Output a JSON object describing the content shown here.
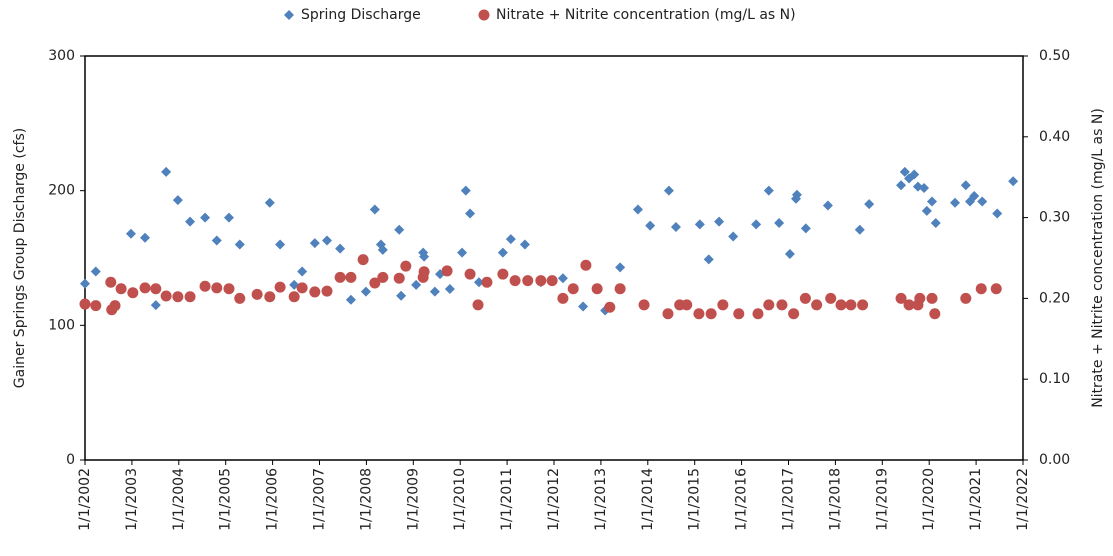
{
  "chart_data": {
    "type": "scatter",
    "y_label": "Gainer Springs Group Discharge (cfs)",
    "y2_label": "Nitrate + Nitrite concentration (mg/L as N)",
    "xlim": [
      2002,
      2022
    ],
    "xticks": [
      {
        "value": 2002,
        "label": "1/1/2002"
      },
      {
        "value": 2003,
        "label": "1/1/2003"
      },
      {
        "value": 2004,
        "label": "1/1/2004"
      },
      {
        "value": 2005,
        "label": "1/1/2005"
      },
      {
        "value": 2006,
        "label": "1/1/2006"
      },
      {
        "value": 2007,
        "label": "1/1/2007"
      },
      {
        "value": 2008,
        "label": "1/1/2008"
      },
      {
        "value": 2009,
        "label": "1/1/2009"
      },
      {
        "value": 2010,
        "label": "1/1/2010"
      },
      {
        "value": 2011,
        "label": "1/1/2011"
      },
      {
        "value": 2012,
        "label": "1/1/2012"
      },
      {
        "value": 2013,
        "label": "1/1/2013"
      },
      {
        "value": 2014,
        "label": "1/1/2014"
      },
      {
        "value": 2015,
        "label": "1/1/2015"
      },
      {
        "value": 2016,
        "label": "1/1/2016"
      },
      {
        "value": 2017,
        "label": "1/1/2017"
      },
      {
        "value": 2018,
        "label": "1/1/2018"
      },
      {
        "value": 2019,
        "label": "1/1/2019"
      },
      {
        "value": 2020,
        "label": "1/1/2020"
      },
      {
        "value": 2021,
        "label": "1/1/2021"
      },
      {
        "value": 2022,
        "label": "1/1/2022"
      }
    ],
    "ylim": [
      0,
      300
    ],
    "yticks": [
      0,
      100,
      200,
      300
    ],
    "y2lim": [
      0,
      0.5
    ],
    "y2ticks": [
      {
        "value": 0,
        "label": "0.00"
      },
      {
        "value": 0.1,
        "label": "0.10"
      },
      {
        "value": 0.2,
        "label": "0.20"
      },
      {
        "value": 0.3,
        "label": "0.30"
      },
      {
        "value": 0.4,
        "label": "0.40"
      },
      {
        "value": 0.5,
        "label": "0.50"
      }
    ],
    "series": [
      {
        "name": "Spring Discharge",
        "color": "#4f81bd",
        "marker": "diamond",
        "x": [
          2002.0,
          2002.23,
          2002.98,
          2003.28,
          2003.51,
          2003.73,
          2003.98,
          2004.24,
          2004.56,
          2004.81,
          2005.07,
          2005.3,
          2005.94,
          2006.16,
          2006.46,
          2006.63,
          2006.9,
          2007.16,
          2007.44,
          2007.67,
          2007.99,
          2008.18,
          2008.31,
          2008.35,
          2008.7,
          2008.74,
          2009.06,
          2009.21,
          2009.23,
          2009.46,
          2009.57,
          2009.78,
          2010.04,
          2010.12,
          2010.21,
          2010.4,
          2010.91,
          2011.08,
          2011.38,
          2011.72,
          2012.19,
          2012.41,
          2012.62,
          2013.09,
          2013.41,
          2013.79,
          2014.05,
          2014.45,
          2014.6,
          2015.11,
          2015.3,
          2015.52,
          2015.82,
          2016.31,
          2016.58,
          2016.8,
          2017.03,
          2017.16,
          2017.18,
          2017.37,
          2017.84,
          2018.52,
          2018.72,
          2019.4,
          2019.48,
          2019.57,
          2019.68,
          2019.76,
          2019.89,
          2019.95,
          2020.06,
          2020.14,
          2020.55,
          2020.78,
          2020.87,
          2020.96,
          2021.13,
          2021.45,
          2021.79
        ],
        "values": [
          131,
          140,
          168,
          165,
          115,
          214,
          193,
          177,
          180,
          163,
          180,
          160,
          191,
          160,
          130,
          140,
          161,
          163,
          157,
          119,
          125,
          186,
          160,
          156,
          171,
          122,
          130,
          154,
          151,
          125,
          138,
          127,
          154,
          200,
          183,
          132,
          154,
          164,
          160,
          132,
          135,
          127,
          114,
          111,
          143,
          186,
          174,
          200,
          173,
          175,
          149,
          177,
          166,
          175,
          200,
          176,
          153,
          194,
          197,
          172,
          189,
          171,
          190,
          204,
          214,
          209,
          212,
          203,
          202,
          185,
          192,
          176,
          191,
          204,
          192,
          196,
          192,
          183,
          207
        ]
      },
      {
        "name": "Nitrate + Nitrite concentration (mg/L as N)",
        "color": "#c0504d",
        "marker": "circle",
        "axis": "y2",
        "x": [
          2002.0,
          2002.23,
          2002.55,
          2002.57,
          2002.64,
          2002.77,
          2003.02,
          2003.28,
          2003.51,
          2003.73,
          2003.98,
          2004.24,
          2004.56,
          2004.81,
          2005.07,
          2005.3,
          2005.67,
          2005.94,
          2006.16,
          2006.46,
          2006.63,
          2006.9,
          2007.16,
          2007.44,
          2007.67,
          2007.93,
          2008.18,
          2008.35,
          2008.7,
          2008.84,
          2009.21,
          2009.23,
          2009.72,
          2010.21,
          2010.38,
          2010.57,
          2010.91,
          2011.17,
          2011.44,
          2011.72,
          2011.96,
          2012.19,
          2012.41,
          2012.68,
          2012.92,
          2013.19,
          2013.41,
          2013.92,
          2014.43,
          2014.68,
          2014.83,
          2015.09,
          2015.35,
          2015.6,
          2015.94,
          2016.35,
          2016.58,
          2016.86,
          2017.11,
          2017.36,
          2017.6,
          2017.9,
          2018.12,
          2018.33,
          2018.58,
          2019.4,
          2019.57,
          2019.76,
          2019.8,
          2020.06,
          2020.12,
          2020.78,
          2021.11,
          2021.43
        ],
        "values": [
          0.193,
          0.191,
          0.22,
          0.186,
          0.191,
          0.212,
          0.207,
          0.213,
          0.212,
          0.203,
          0.202,
          0.202,
          0.215,
          0.213,
          0.212,
          0.2,
          0.205,
          0.202,
          0.214,
          0.202,
          0.213,
          0.208,
          0.209,
          0.226,
          0.226,
          0.248,
          0.219,
          0.226,
          0.225,
          0.24,
          0.226,
          0.233,
          0.234,
          0.23,
          0.192,
          0.22,
          0.23,
          0.222,
          0.222,
          0.222,
          0.222,
          0.2,
          0.212,
          0.241,
          0.212,
          0.189,
          0.212,
          0.192,
          0.181,
          0.192,
          0.192,
          0.181,
          0.181,
          0.192,
          0.181,
          0.181,
          0.192,
          0.192,
          0.181,
          0.2,
          0.192,
          0.2,
          0.192,
          0.192,
          0.192,
          0.2,
          0.192,
          0.192,
          0.2,
          0.2,
          0.181,
          0.2,
          0.212,
          0.212
        ]
      }
    ]
  }
}
